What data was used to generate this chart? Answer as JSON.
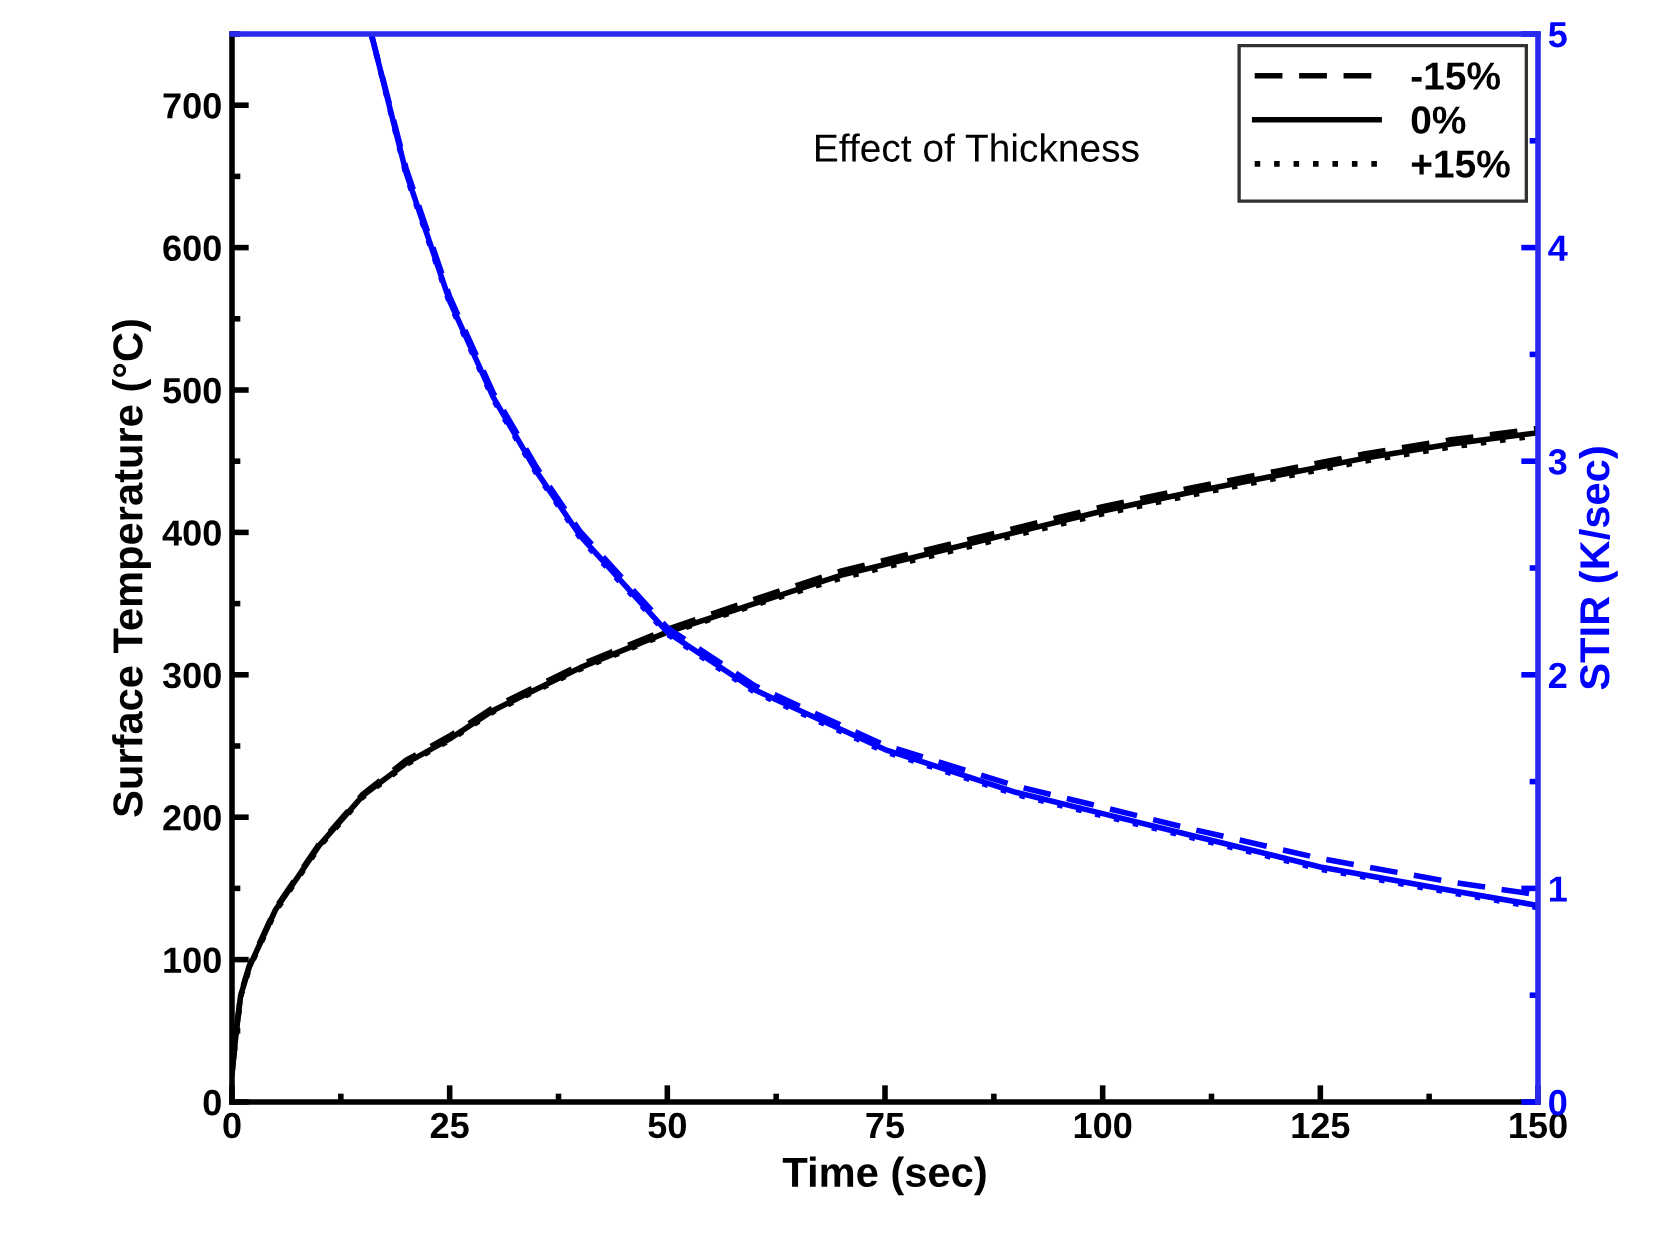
{
  "chart_data": {
    "type": "line",
    "xlabel": "Time (sec)",
    "ylabel": "Surface Temperature (°C)",
    "y2label": "STIR (K/sec)",
    "annotations": [
      "Effect of Thickness"
    ],
    "xlim": [
      0,
      150
    ],
    "xticks": [
      0,
      25,
      50,
      75,
      100,
      125,
      150
    ],
    "ylim": [
      0,
      750
    ],
    "yticks": [
      0,
      100,
      200,
      300,
      400,
      500,
      600,
      700
    ],
    "y2lim": [
      0,
      5
    ],
    "y2ticks": [
      0,
      1,
      2,
      3,
      4,
      5
    ],
    "grid": false,
    "legend": "top right",
    "marker": "none",
    "series": [
      {
        "name": "-15%",
        "color": "#000000",
        "line_style": "dashed",
        "x": [
          0,
          0.5,
          1,
          2,
          5,
          10,
          15,
          20,
          25,
          30,
          40,
          50,
          60,
          70,
          80,
          90,
          100,
          110,
          120,
          130,
          140,
          150
        ],
        "values": [
          20,
          50,
          76,
          96,
          136,
          181,
          216,
          240,
          257,
          277,
          307,
          332,
          353,
          373,
          388,
          403,
          418,
          431,
          443,
          455,
          465,
          473
        ]
      },
      {
        "name": "0%",
        "color": "#000000",
        "line_style": "solid",
        "x": [
          0,
          0.5,
          1,
          2,
          5,
          10,
          15,
          20,
          25,
          30,
          40,
          50,
          60,
          70,
          80,
          90,
          100,
          110,
          120,
          130,
          140,
          150
        ],
        "values": [
          20,
          50,
          75,
          95,
          135,
          180,
          215,
          238,
          255,
          275,
          305,
          330,
          350,
          370,
          385,
          400,
          415,
          428,
          440,
          452,
          462,
          470
        ]
      },
      {
        "name": "+15%",
        "color": "#000000",
        "line_style": "dotted",
        "x": [
          0,
          0.5,
          1,
          2,
          5,
          10,
          15,
          20,
          25,
          30,
          40,
          50,
          60,
          70,
          80,
          90,
          100,
          110,
          120,
          130,
          140,
          150
        ],
        "values": [
          20,
          49,
          74,
          94,
          134,
          179,
          214,
          237,
          254,
          274,
          304,
          329,
          349,
          368,
          383,
          398,
          413,
          426,
          438,
          450,
          460,
          468
        ]
      },
      {
        "color": "#0000ff",
        "line_style": "dashed",
        "axis": "y2",
        "x": [
          16,
          20,
          25,
          30,
          35,
          40,
          50,
          60,
          75,
          90,
          100,
          110,
          125,
          140,
          150
        ],
        "values": [
          5.0,
          4.37,
          3.77,
          3.32,
          2.97,
          2.67,
          2.22,
          1.95,
          1.67,
          1.48,
          1.38,
          1.28,
          1.14,
          1.03,
          0.97
        ]
      },
      {
        "color": "#0000ff",
        "line_style": "solid",
        "axis": "y2",
        "x": [
          16,
          20,
          25,
          30,
          35,
          40,
          50,
          60,
          75,
          90,
          100,
          110,
          125,
          140,
          150
        ],
        "values": [
          5.0,
          4.35,
          3.75,
          3.3,
          2.95,
          2.65,
          2.2,
          1.93,
          1.65,
          1.45,
          1.35,
          1.25,
          1.1,
          0.99,
          0.92
        ]
      },
      {
        "color": "#0000ff",
        "line_style": "dotted",
        "axis": "y2",
        "x": [
          16,
          20,
          25,
          30,
          35,
          40,
          50,
          60,
          75,
          90,
          100,
          110,
          125,
          140,
          150
        ],
        "values": [
          5.0,
          4.34,
          3.74,
          3.29,
          2.94,
          2.64,
          2.19,
          1.92,
          1.64,
          1.44,
          1.34,
          1.24,
          1.09,
          0.98,
          0.91
        ]
      }
    ]
  }
}
